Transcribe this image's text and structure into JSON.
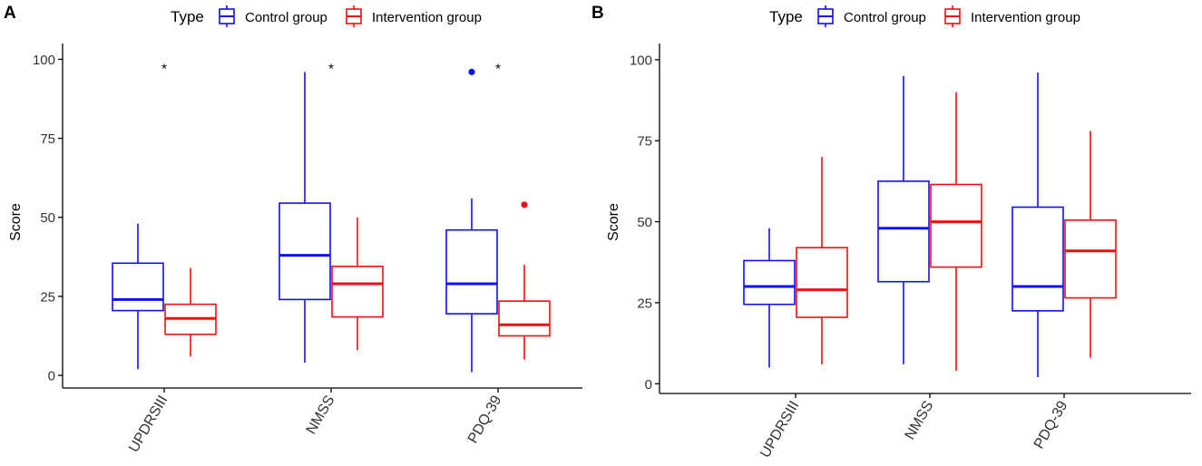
{
  "legend": {
    "title": "Type",
    "entries": [
      {
        "label": "Control group",
        "color": "#1010ee"
      },
      {
        "label": "Intervention group",
        "color": "#ee1010"
      }
    ]
  },
  "panels": [
    {
      "label": "A",
      "ylabel": "Score"
    },
    {
      "label": "B",
      "ylabel": "Score"
    }
  ],
  "chart_data": [
    {
      "type": "box",
      "panel": "A",
      "ylabel": "Score",
      "xlabel": "",
      "categories": [
        "UPDRSIII",
        "NMSS",
        "PDQ-39"
      ],
      "ylim": [
        -4,
        105
      ],
      "yticks": [
        0,
        25,
        50,
        75,
        100
      ],
      "significance": [
        "*",
        "*",
        "*"
      ],
      "significance_y": 98,
      "series": [
        {
          "name": "Control group",
          "color": "#1010ee",
          "boxes": [
            {
              "min": 2,
              "q1": 20.5,
              "median": 24,
              "q3": 35.5,
              "max": 48,
              "outliers": []
            },
            {
              "min": 4,
              "q1": 24,
              "median": 38,
              "q3": 54.5,
              "max": 96,
              "outliers": []
            },
            {
              "min": 1,
              "q1": 19.5,
              "median": 29,
              "q3": 46,
              "max": 56,
              "outliers": [
                96
              ]
            }
          ]
        },
        {
          "name": "Intervention group",
          "color": "#ee1010",
          "boxes": [
            {
              "min": 6,
              "q1": 13,
              "median": 18,
              "q3": 22.5,
              "max": 34,
              "outliers": []
            },
            {
              "min": 8,
              "q1": 18.5,
              "median": 29,
              "q3": 34.5,
              "max": 50,
              "outliers": []
            },
            {
              "min": 5,
              "q1": 12.5,
              "median": 16,
              "q3": 23.5,
              "max": 35,
              "outliers": [
                54
              ]
            }
          ]
        }
      ]
    },
    {
      "type": "box",
      "panel": "B",
      "ylabel": "Score",
      "xlabel": "",
      "categories": [
        "UPDRSIII",
        "NMSS",
        "PDQ-39"
      ],
      "ylim": [
        -3,
        105
      ],
      "yticks": [
        0,
        25,
        50,
        75,
        100
      ],
      "significance": [],
      "series": [
        {
          "name": "Control group",
          "color": "#1010ee",
          "boxes": [
            {
              "min": 5,
              "q1": 24.5,
              "median": 30,
              "q3": 38,
              "max": 48,
              "outliers": []
            },
            {
              "min": 6,
              "q1": 31.5,
              "median": 48,
              "q3": 62.5,
              "max": 95,
              "outliers": []
            },
            {
              "min": 2,
              "q1": 22.5,
              "median": 30,
              "q3": 54.5,
              "max": 96,
              "outliers": []
            }
          ]
        },
        {
          "name": "Intervention group",
          "color": "#ee1010",
          "boxes": [
            {
              "min": 6,
              "q1": 20.5,
              "median": 29,
              "q3": 42,
              "max": 70,
              "outliers": []
            },
            {
              "min": 4,
              "q1": 36,
              "median": 50,
              "q3": 61.5,
              "max": 90,
              "outliers": []
            },
            {
              "min": 8,
              "q1": 26.5,
              "median": 41,
              "q3": 50.5,
              "max": 78,
              "outliers": []
            }
          ]
        }
      ]
    }
  ]
}
